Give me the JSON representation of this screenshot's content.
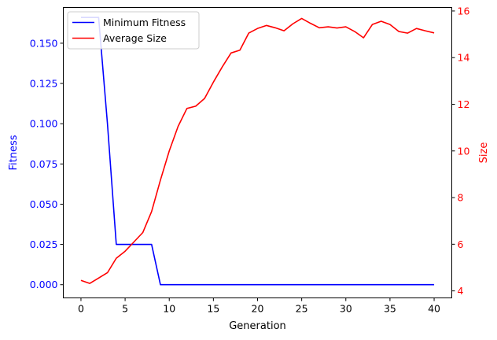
{
  "chart_data": {
    "type": "line",
    "xlabel": "Generation",
    "ylabel_left": "Fitness",
    "ylabel_right": "Size",
    "xlim": [
      -2,
      42
    ],
    "ylim_left": [
      -0.0082,
      0.1722
    ],
    "ylim_right": [
      3.7,
      16.15
    ],
    "x_ticks": [
      0,
      5,
      10,
      15,
      20,
      25,
      30,
      35,
      40
    ],
    "y_ticks_left": [
      0.0,
      0.025,
      0.05,
      0.075,
      0.1,
      0.125,
      0.15
    ],
    "y_ticks_left_labels": [
      "0.000",
      "0.025",
      "0.050",
      "0.075",
      "0.100",
      "0.125",
      "0.150"
    ],
    "y_ticks_right": [
      4,
      6,
      8,
      10,
      12,
      14,
      16
    ],
    "grid": false,
    "legend_position": "top-left",
    "colors": {
      "left_axis": "#0000ff",
      "right_axis": "#ff0000",
      "axes": "#000000"
    },
    "series": [
      {
        "name": "Minimum Fitness",
        "axis": "left",
        "color": "#0000ff",
        "x": [
          0,
          1,
          2,
          3,
          4,
          5,
          6,
          7,
          8,
          9,
          10,
          11,
          12,
          13,
          14,
          15,
          16,
          17,
          18,
          19,
          20,
          21,
          22,
          23,
          24,
          25,
          26,
          27,
          28,
          29,
          30,
          31,
          32,
          33,
          34,
          35,
          36,
          37,
          38,
          39,
          40
        ],
        "values": [
          0.166,
          0.166,
          0.166,
          0.1,
          0.025,
          0.025,
          0.025,
          0.025,
          0.025,
          0,
          0,
          0,
          0,
          0,
          0,
          0,
          0,
          0,
          0,
          0,
          0,
          0,
          0,
          0,
          0,
          0,
          0,
          0,
          0,
          0,
          0,
          0,
          0,
          0,
          0,
          0,
          0,
          0,
          0,
          0,
          0
        ]
      },
      {
        "name": "Average Size",
        "axis": "right",
        "color": "#ff0000",
        "x": [
          0,
          1,
          2,
          3,
          4,
          5,
          6,
          7,
          8,
          9,
          10,
          11,
          12,
          13,
          14,
          15,
          16,
          17,
          18,
          19,
          20,
          21,
          22,
          23,
          24,
          25,
          26,
          27,
          28,
          29,
          30,
          31,
          32,
          33,
          34,
          35,
          36,
          37,
          38,
          39,
          40
        ],
        "values": [
          4.45,
          4.32,
          4.55,
          4.78,
          5.4,
          5.7,
          6.1,
          6.5,
          7.4,
          8.75,
          10.0,
          11.05,
          11.82,
          11.92,
          12.25,
          12.95,
          13.6,
          14.2,
          14.32,
          15.05,
          15.25,
          15.38,
          15.28,
          15.15,
          15.45,
          15.68,
          15.47,
          15.28,
          15.32,
          15.27,
          15.32,
          15.12,
          14.85,
          15.42,
          15.56,
          15.42,
          15.12,
          15.05,
          15.25,
          15.15,
          15.06
        ]
      }
    ]
  }
}
